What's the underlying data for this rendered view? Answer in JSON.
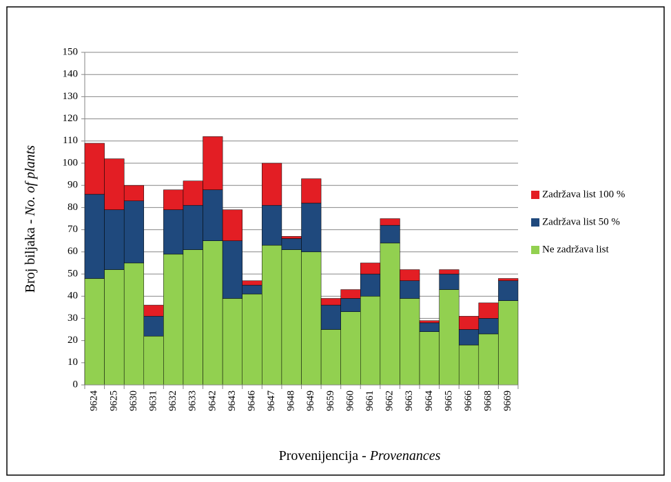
{
  "chart_data": {
    "type": "stacked_bar",
    "y_label": {
      "main": "Broj biljaka - ",
      "english": "No. of plants"
    },
    "x_label": {
      "main": "Provenijencija - ",
      "english": "Provenances"
    },
    "categories": [
      "9624",
      "9625",
      "9630",
      "9631",
      "9632",
      "9633",
      "9642",
      "9643",
      "9646",
      "9647",
      "9648",
      "9649",
      "9659",
      "9660",
      "9661",
      "9662",
      "9663",
      "9664",
      "9665",
      "9666",
      "9668",
      "9669"
    ],
    "series": [
      {
        "name": "Ne zadržava list",
        "color": "#92d050",
        "values": [
          48,
          52,
          55,
          22,
          59,
          61,
          65,
          39,
          41,
          63,
          61,
          60,
          25,
          33,
          40,
          64,
          39,
          24,
          43,
          18,
          23,
          38
        ]
      },
      {
        "name": "Zadržava list 50 %",
        "color": "#1f497d",
        "values": [
          38,
          27,
          28,
          9,
          20,
          20,
          23,
          26,
          4,
          18,
          5,
          22,
          11,
          6,
          10,
          8,
          8,
          4,
          7,
          7,
          7,
          9
        ]
      },
      {
        "name": "Zadržava list 100 %",
        "color": "#e31e24",
        "values": [
          23,
          23,
          7,
          5,
          9,
          11,
          24,
          14,
          2,
          19,
          1,
          11,
          3,
          4,
          5,
          3,
          5,
          1,
          2,
          6,
          7,
          1
        ]
      }
    ],
    "ylim": [
      0,
      150
    ],
    "yticks": [
      0,
      10,
      20,
      30,
      40,
      50,
      60,
      70,
      80,
      90,
      100,
      110,
      120,
      130,
      140,
      150
    ],
    "grid": true,
    "legend": "right"
  }
}
